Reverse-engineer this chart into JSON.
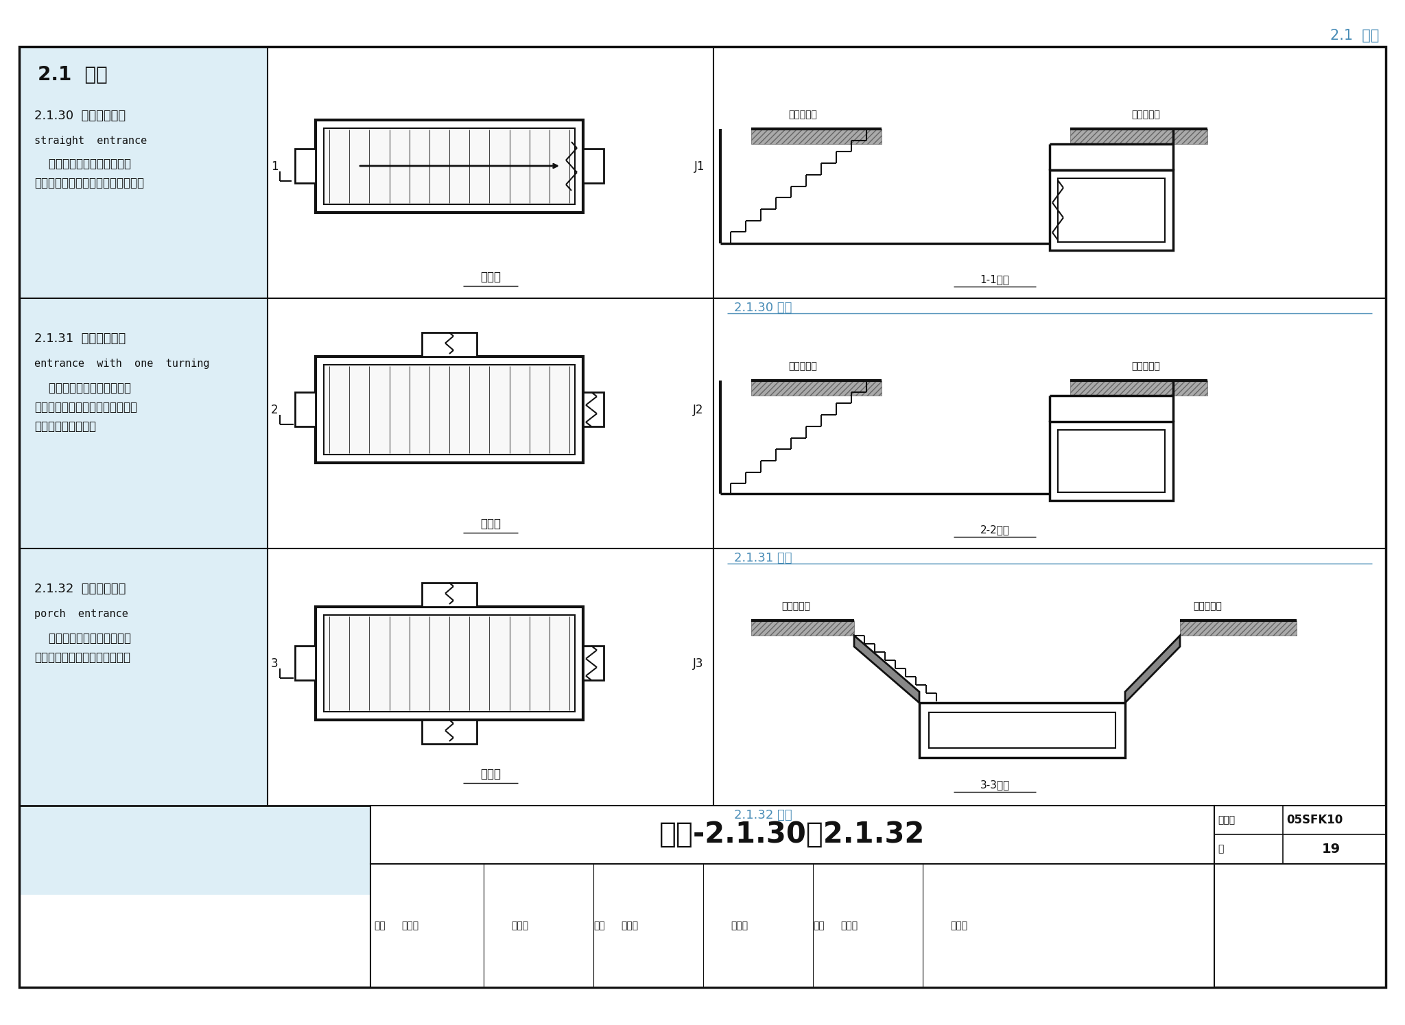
{
  "page_title": "2.1  术语",
  "accent_color": "#4a8db7",
  "bg_color": "#ffffff",
  "left_bg": "#ddeef6",
  "text_color": "#111111",
  "border_color": "#111111",
  "rows": [
    {
      "id": "2.1.30",
      "title_zh": "直通式出入口",
      "title_en": "straight  entrance",
      "desc1": "    防护密闭门外的通道在水平",
      "desc2": "方向上没有转折通至地面的出入口。",
      "label": "1",
      "section_label": "1-1剖面",
      "figure_label": "2.1.30 图示"
    },
    {
      "id": "2.1.31",
      "title_zh": "单向式出入口",
      "title_en": "entrance  with  one  turning",
      "desc1": "    防护密闭门外的通道在水平",
      "desc2": "方向上有垂直转折，并从一个方向",
      "desc3": "通至地面的出入口。",
      "label": "2",
      "section_label": "2-2剖面",
      "figure_label": "2.1.31 图示"
    },
    {
      "id": "2.1.32",
      "title_zh": "穿廊式出入口",
      "title_en": "porch  entrance",
      "desc1": "    防护密闭门外的通道出入端",
      "desc2": "从两个方向通至地面的出入口。",
      "label": "3",
      "section_label": "3-3剖面",
      "figure_label": "2.1.32 图示"
    }
  ],
  "bottom_title": "术语-2.1.30～2.1.32",
  "atlas_no_label": "图集号",
  "atlas_no": "05SFK10",
  "page_label": "页",
  "page_no": "19",
  "staff_cells": [
    {
      "role": "审核",
      "name": "马希英"
    },
    {
      "role": "",
      "name": "王府芬"
    },
    {
      "role": "校对",
      "name": "王焕东"
    },
    {
      "role": "",
      "name": "亚映采"
    },
    {
      "role": "设计",
      "name": "赵贵华"
    },
    {
      "role": "",
      "name": "董重卓"
    }
  ]
}
